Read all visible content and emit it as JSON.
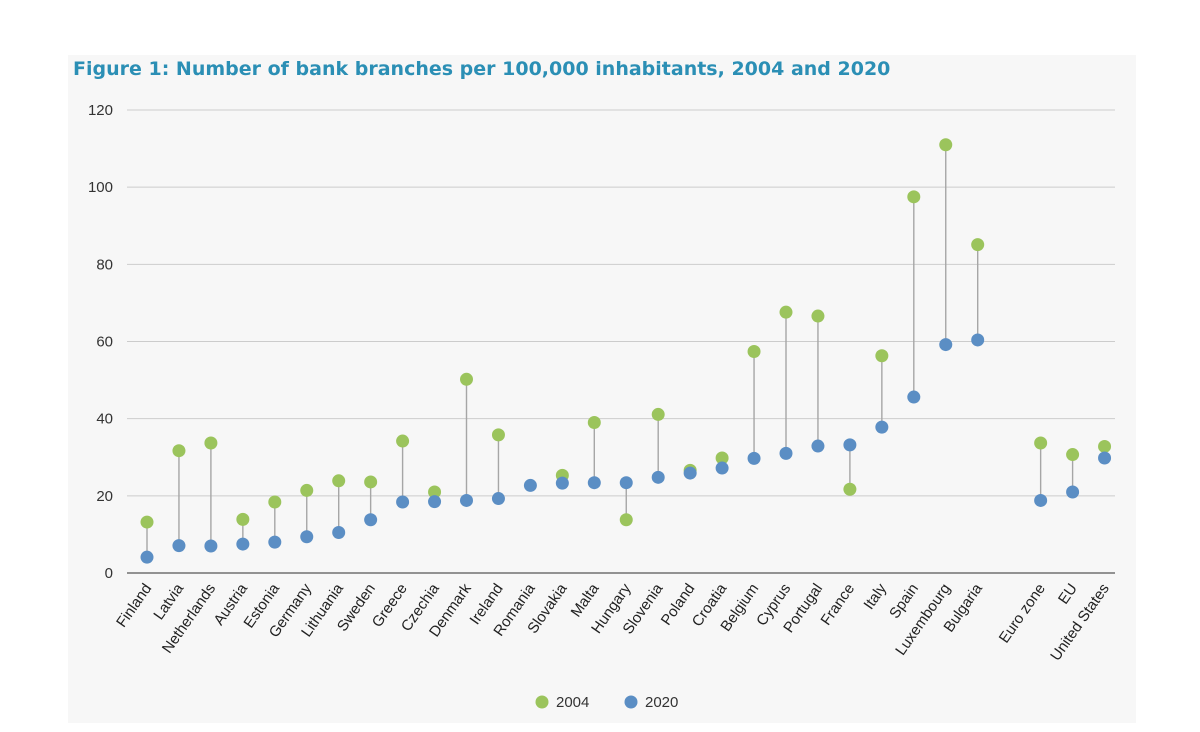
{
  "title": "Figure 1: Number of bank branches per 100,000 inhabitants, 2004 and 2020",
  "colors": {
    "s2004": "#9bc45c",
    "s2020": "#5b8ec4",
    "title": "#2b8fb5",
    "grid": "#cccccc",
    "connector": "#a6a6a6"
  },
  "chart_data": {
    "type": "scatter",
    "title": "Figure 1: Number of bank branches per 100,000 inhabitants, 2004 and 2020",
    "xlabel": "",
    "ylabel": "",
    "ylim": [
      0,
      120
    ],
    "yticks": [
      0,
      20,
      40,
      60,
      80,
      100,
      120
    ],
    "grid": true,
    "legend_position": "bottom",
    "categories": [
      "Finland",
      "Latvia",
      "Netherlands",
      "Austria",
      "Estonia",
      "Germany",
      "Lithuania",
      "Sweden",
      "Greece",
      "Czechia",
      "Denmark",
      "Ireland",
      "Romania",
      "Slovakia",
      "Malta",
      "Hungary",
      "Slovenia",
      "Poland",
      "Croatia",
      "Belgium",
      "Cyprus",
      "Portugal",
      "France",
      "Italy",
      "Spain",
      "Luxembourg",
      "Bulgaria",
      "Euro zone",
      "EU",
      "United States"
    ],
    "series": [
      {
        "name": "2004",
        "values": [
          13.2,
          31.7,
          33.7,
          13.9,
          18.4,
          21.4,
          23.9,
          23.6,
          34.2,
          21.0,
          50.2,
          35.8,
          null,
          25.3,
          39.0,
          13.8,
          41.1,
          26.6,
          29.8,
          57.4,
          67.6,
          66.6,
          21.7,
          56.3,
          97.5,
          111.0,
          85.1,
          33.7,
          30.7,
          32.8
        ]
      },
      {
        "name": "2020",
        "values": [
          4.1,
          7.1,
          7.0,
          7.5,
          8.0,
          9.4,
          10.5,
          13.8,
          18.4,
          18.5,
          18.8,
          19.3,
          22.7,
          23.3,
          23.4,
          23.4,
          24.8,
          25.9,
          27.2,
          29.7,
          31.0,
          32.9,
          33.2,
          37.8,
          45.6,
          59.2,
          60.4,
          18.8,
          21.0,
          29.8
        ]
      }
    ]
  }
}
